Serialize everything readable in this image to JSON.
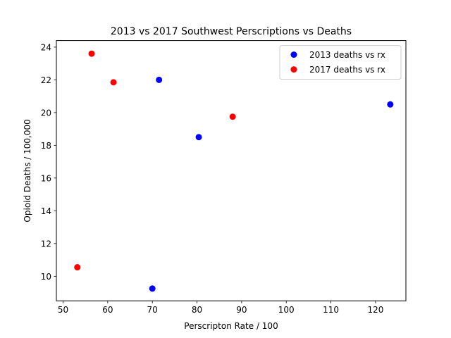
{
  "chart_data": {
    "type": "scatter",
    "title": "2013 vs 2017 Southwest Perscriptions vs Deaths",
    "xlabel": "Perscripton Rate / 100",
    "ylabel": "Opioid Deaths / 100,000",
    "xlim": [
      48.5,
      126.8
    ],
    "ylim": [
      8.5,
      24.4
    ],
    "xticks": [
      50,
      60,
      70,
      80,
      90,
      100,
      110,
      120
    ],
    "yticks": [
      10,
      12,
      14,
      16,
      18,
      20,
      22,
      24
    ],
    "grid": false,
    "legend_position": "top-right",
    "series": [
      {
        "name": "2013 deaths vs rx",
        "color": "#0000ff",
        "points": [
          {
            "x": 71.5,
            "y": 22.0
          },
          {
            "x": 80.4,
            "y": 18.5
          },
          {
            "x": 123.3,
            "y": 20.5
          },
          {
            "x": 70.0,
            "y": 9.25
          }
        ]
      },
      {
        "name": "2017 deaths vs rx",
        "color": "#ff0000",
        "points": [
          {
            "x": 56.4,
            "y": 23.6
          },
          {
            "x": 61.3,
            "y": 21.85
          },
          {
            "x": 88.0,
            "y": 19.75
          },
          {
            "x": 53.2,
            "y": 10.55
          }
        ]
      }
    ]
  }
}
